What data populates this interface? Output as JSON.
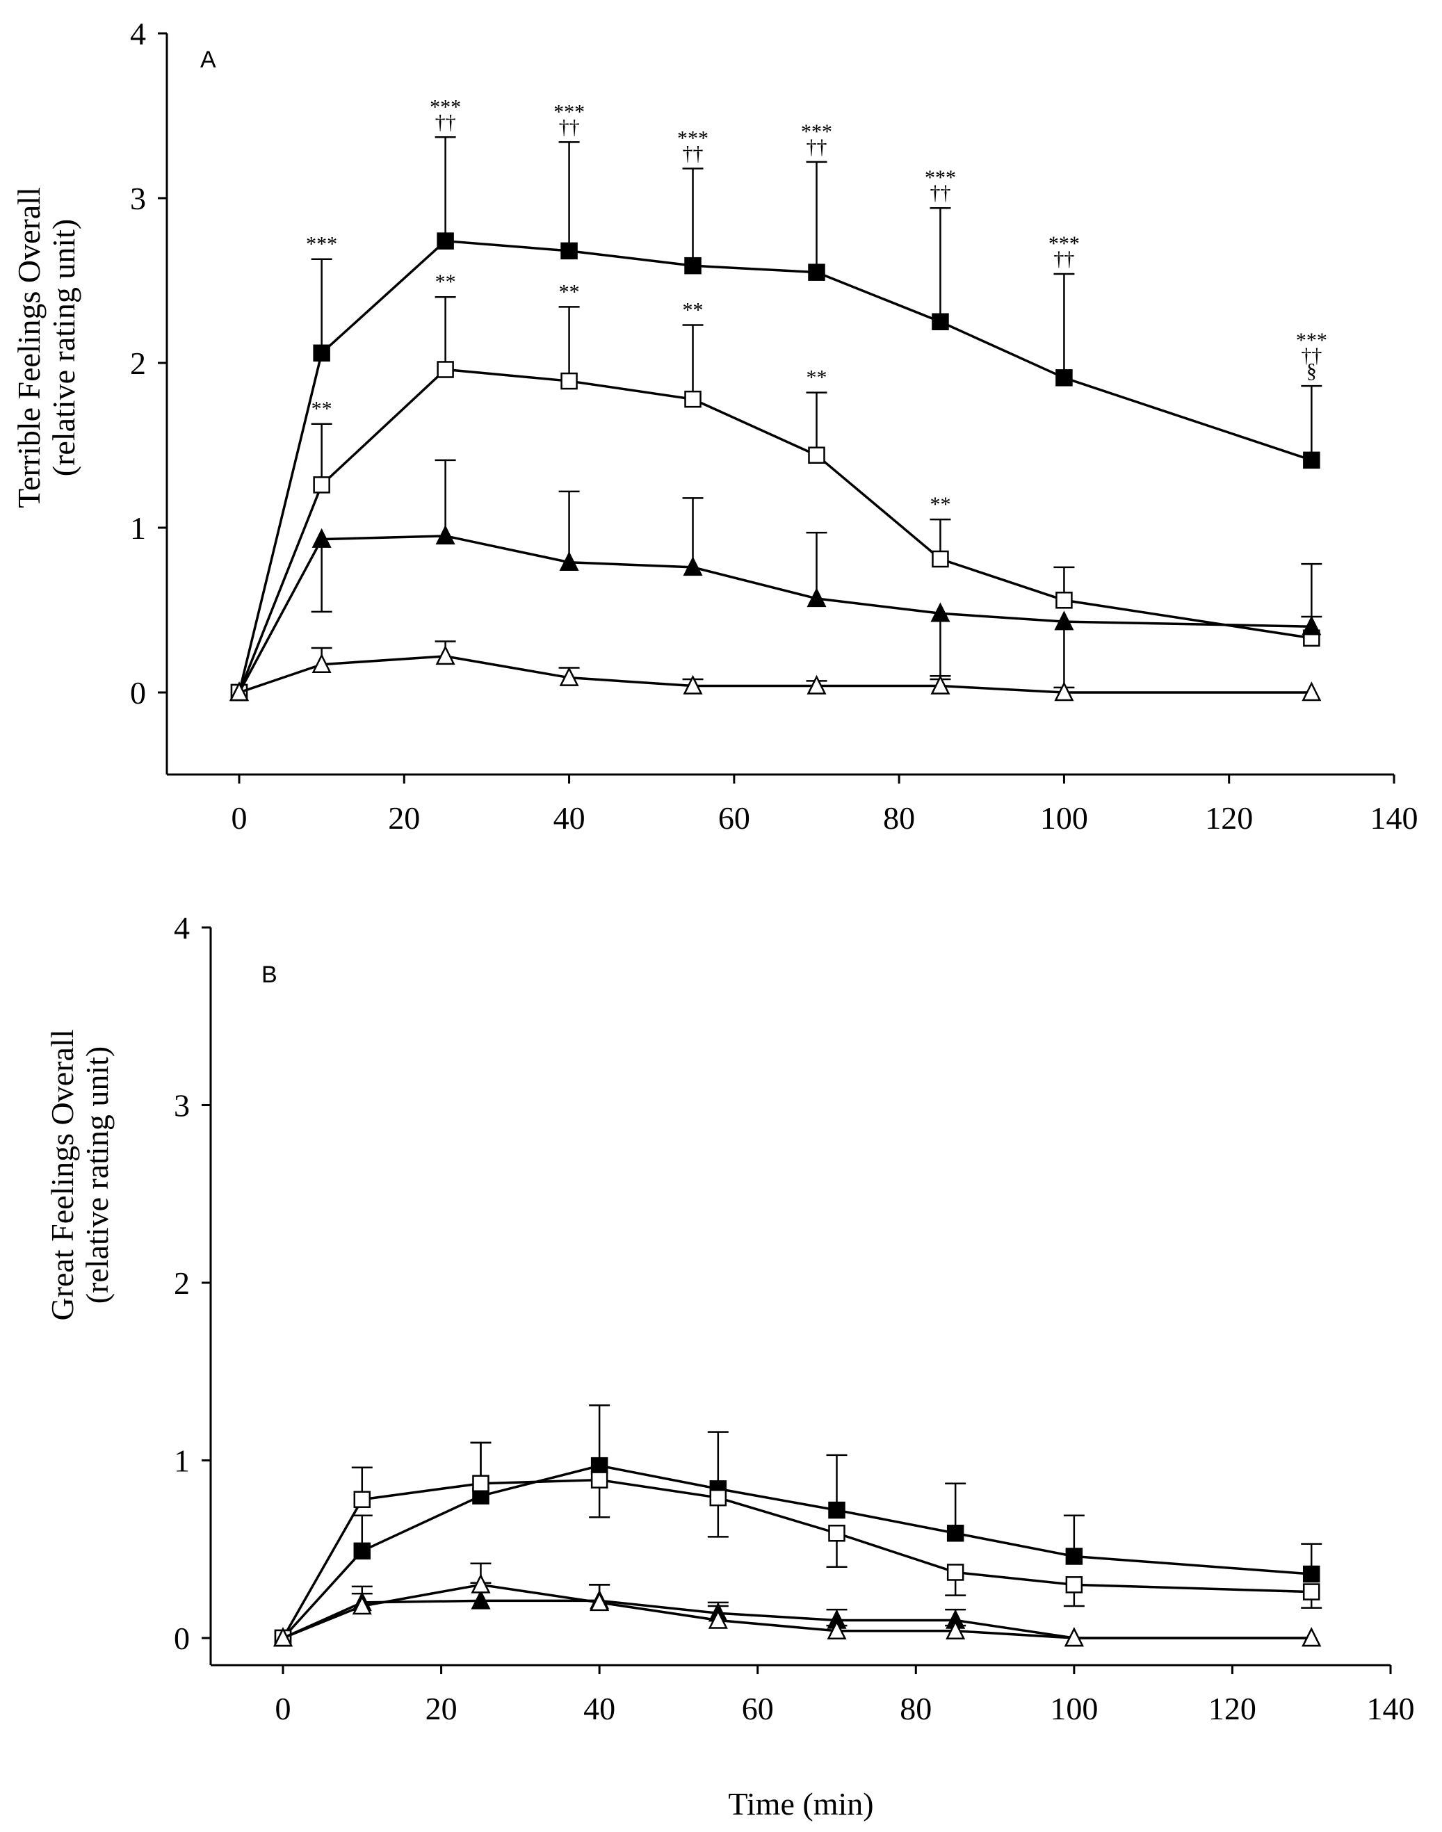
{
  "chart_data": [
    {
      "type": "line",
      "panel_label": "A",
      "ylabel_lines": [
        "Terrible  Feelings Overall",
        "(relative rating unit)"
      ],
      "xlabel": "",
      "xlim": [
        -10,
        140
      ],
      "ylim": [
        -0.5,
        4
      ],
      "x_ticks": [
        0,
        20,
        40,
        60,
        80,
        100,
        120,
        140
      ],
      "x_tick_labels": [
        "0",
        "20",
        "40",
        "60",
        "80",
        "100",
        "120",
        "140"
      ],
      "y_ticks": [
        0,
        1,
        2,
        3,
        4
      ],
      "y_tick_labels": [
        "0",
        "1",
        "2",
        "3",
        "4"
      ],
      "x": [
        0,
        10,
        25,
        40,
        55,
        70,
        85,
        100,
        130
      ],
      "series": [
        {
          "name": "filled-square",
          "marker": "square",
          "fill": "#000000",
          "values": [
            0,
            2.06,
            2.74,
            2.68,
            2.59,
            2.55,
            2.25,
            1.91,
            1.41
          ],
          "errors": [
            0,
            0.57,
            0.63,
            0.66,
            0.59,
            0.67,
            0.69,
            0.63,
            0.45
          ]
        },
        {
          "name": "open-square",
          "marker": "square",
          "fill": "#ffffff",
          "values": [
            0,
            1.26,
            1.96,
            1.89,
            1.78,
            1.44,
            0.81,
            0.56,
            0.33
          ],
          "errors": [
            0,
            0.37,
            0.44,
            0.45,
            0.45,
            0.38,
            0.24,
            0.2,
            0.13
          ]
        },
        {
          "name": "filled-triangle",
          "marker": "triangle",
          "fill": "#000000",
          "values": [
            0,
            0.93,
            0.95,
            0.79,
            0.76,
            0.57,
            0.48,
            0.43,
            0.4
          ],
          "errors": [
            0,
            0.44,
            0.46,
            0.43,
            0.42,
            0.4,
            0.4,
            0.4,
            0.38
          ],
          "error_direction": [
            1,
            -1,
            1,
            1,
            1,
            1,
            -1,
            -1,
            1
          ]
        },
        {
          "name": "open-triangle",
          "marker": "triangle",
          "fill": "#ffffff",
          "values": [
            0,
            0.17,
            0.22,
            0.09,
            0.04,
            0.04,
            0.04,
            0,
            0
          ],
          "errors": [
            0,
            0.1,
            0.09,
            0.06,
            0.04,
            0.03,
            0.06,
            0,
            0
          ]
        }
      ],
      "annotations": [
        {
          "x": 10,
          "lines": [
            "***"
          ],
          "above_y": 2.63
        },
        {
          "x": 25,
          "lines": [
            "***",
            "††"
          ],
          "above_y": 3.37
        },
        {
          "x": 40,
          "lines": [
            "***",
            "††"
          ],
          "above_y": 3.34
        },
        {
          "x": 55,
          "lines": [
            "***",
            "††"
          ],
          "above_y": 3.18
        },
        {
          "x": 70,
          "lines": [
            "***",
            "††"
          ],
          "above_y": 3.22
        },
        {
          "x": 85,
          "lines": [
            "***",
            "††"
          ],
          "above_y": 2.94
        },
        {
          "x": 100,
          "lines": [
            "***",
            "††"
          ],
          "above_y": 2.54
        },
        {
          "x": 130,
          "lines": [
            "***",
            "††",
            "§"
          ],
          "above_y": 1.86
        },
        {
          "x": 10,
          "lines": [
            "**"
          ],
          "above_y": 1.63
        },
        {
          "x": 25,
          "lines": [
            "**"
          ],
          "above_y": 2.4
        },
        {
          "x": 40,
          "lines": [
            "**"
          ],
          "above_y": 2.34
        },
        {
          "x": 55,
          "lines": [
            "**"
          ],
          "above_y": 2.23
        },
        {
          "x": 70,
          "lines": [
            "**"
          ],
          "above_y": 1.82
        },
        {
          "x": 85,
          "lines": [
            "**"
          ],
          "above_y": 1.05
        }
      ]
    },
    {
      "type": "line",
      "panel_label": "B",
      "ylabel_lines": [
        "Great Feelings Overall",
        "(relative rating unit)"
      ],
      "xlabel": "Time (min)",
      "xlim": [
        -10,
        140
      ],
      "ylim": [
        -0.05,
        4
      ],
      "x_ticks": [
        0,
        20,
        40,
        60,
        80,
        100,
        120,
        140
      ],
      "x_tick_labels": [
        "0",
        "20",
        "40",
        "60",
        "80",
        "100",
        "120",
        "140"
      ],
      "y_ticks": [
        0,
        1,
        2,
        3,
        4
      ],
      "y_tick_labels": [
        "0",
        "1",
        "2",
        "3",
        "4"
      ],
      "x": [
        0,
        10,
        25,
        40,
        55,
        70,
        85,
        100,
        130
      ],
      "series": [
        {
          "name": "filled-square",
          "marker": "square",
          "fill": "#000000",
          "values": [
            0,
            0.49,
            0.8,
            0.97,
            0.84,
            0.72,
            0.59,
            0.46,
            0.36
          ],
          "errors": [
            0,
            0.2,
            0.3,
            0.34,
            0.32,
            0.31,
            0.28,
            0.23,
            0.17
          ]
        },
        {
          "name": "open-square",
          "marker": "square",
          "fill": "#ffffff",
          "values": [
            0,
            0.78,
            0.87,
            0.89,
            0.79,
            0.59,
            0.37,
            0.3,
            0.26
          ],
          "errors": [
            0,
            0.18,
            0.23,
            0.21,
            0.22,
            0.19,
            0.13,
            0.12,
            0.09
          ],
          "error_direction": [
            1,
            1,
            1,
            -1,
            -1,
            -1,
            -1,
            -1,
            -1
          ]
        },
        {
          "name": "filled-triangle",
          "marker": "triangle",
          "fill": "#000000",
          "values": [
            0,
            0.2,
            0.21,
            0.21,
            0.14,
            0.1,
            0.1,
            0,
            0
          ],
          "errors": [
            0,
            0.09,
            0.1,
            0.09,
            0.06,
            0.06,
            0.06,
            0,
            0
          ]
        },
        {
          "name": "open-triangle",
          "marker": "triangle",
          "fill": "#ffffff",
          "values": [
            0,
            0.18,
            0.3,
            0.2,
            0.1,
            0.04,
            0.04,
            0,
            0
          ],
          "errors": [
            0,
            0.07,
            0.12,
            0.1,
            0.08,
            0.03,
            0.03,
            0,
            0
          ]
        }
      ],
      "annotations": []
    }
  ]
}
